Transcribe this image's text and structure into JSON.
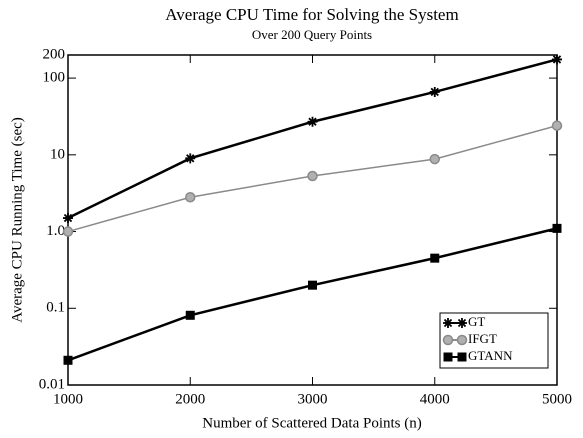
{
  "chart_data": {
    "type": "line",
    "title": "Average CPU Time for  Solving the System",
    "subtitle": "Over 200 Query Points",
    "x_label": "Number of Scattered Data Points (n)",
    "y_label": "Average CPU Running Time (sec)",
    "x": [
      1000,
      2000,
      3000,
      4000,
      5000
    ],
    "series": [
      {
        "name": "GT",
        "color": "#000000",
        "marker": "star",
        "values": [
          1.5,
          9,
          27,
          66,
          175
        ]
      },
      {
        "name": "IFGT",
        "color": "#8a8a8a",
        "marker": "circle",
        "values": [
          1.0,
          2.8,
          5.3,
          8.8,
          24
        ]
      },
      {
        "name": "GTANN",
        "color": "#000000",
        "marker": "square",
        "values": [
          0.021,
          0.081,
          0.2,
          0.45,
          1.1
        ]
      }
    ],
    "xlim": [
      1000,
      5000
    ],
    "xticks": [
      1000,
      2000,
      3000,
      4000,
      5000
    ],
    "ylim": [
      0.01,
      200
    ],
    "yticks": [
      0.01,
      0.1,
      {
        "value": 1,
        "label": "1.0"
      },
      10,
      100,
      200
    ],
    "y_log": true,
    "legend": "lower right"
  }
}
